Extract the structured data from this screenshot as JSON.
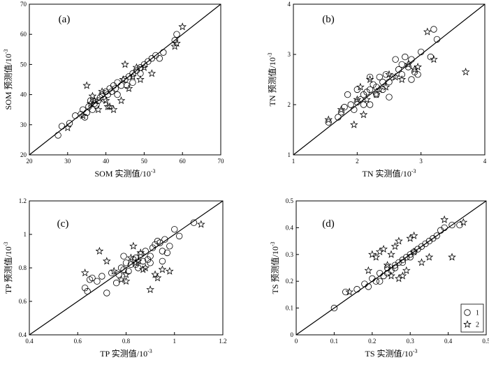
{
  "chart_data": [
    {
      "type": "scatter",
      "panel_label": "(a)",
      "xlabel": "SOM 实测值/10",
      "ylabel": "SOM 预测值/10",
      "unit_exponent": "-3",
      "xlim": [
        20,
        70
      ],
      "ylim": [
        20,
        70
      ],
      "xticks": [
        20,
        30,
        40,
        50,
        60,
        70
      ],
      "yticks": [
        20,
        30,
        40,
        50,
        60,
        70
      ],
      "line": [
        [
          20,
          20
        ],
        [
          70,
          70
        ]
      ],
      "series": [
        {
          "name": "1",
          "marker": "circle",
          "points": [
            [
              27.5,
              26.5
            ],
            [
              28.5,
              29.5
            ],
            [
              30.5,
              30.5
            ],
            [
              32,
              33
            ],
            [
              33.5,
              33.5
            ],
            [
              34,
              35
            ],
            [
              34.5,
              32.5
            ],
            [
              35,
              34
            ],
            [
              35.5,
              36
            ],
            [
              36,
              38
            ],
            [
              36.5,
              35
            ],
            [
              37,
              37
            ],
            [
              37.5,
              36.5
            ],
            [
              38,
              38
            ],
            [
              38.5,
              39
            ],
            [
              39,
              40
            ],
            [
              39.5,
              38.5
            ],
            [
              40,
              41
            ],
            [
              40.5,
              40
            ],
            [
              41,
              42
            ],
            [
              41.5,
              41
            ],
            [
              42,
              43
            ],
            [
              42.5,
              42
            ],
            [
              43,
              44
            ],
            [
              44,
              43
            ],
            [
              45,
              45
            ],
            [
              46,
              46
            ],
            [
              47,
              47
            ],
            [
              48,
              48
            ],
            [
              49,
              49
            ],
            [
              50,
              50
            ],
            [
              51,
              51
            ],
            [
              52,
              52
            ],
            [
              53,
              53
            ],
            [
              55,
              54
            ],
            [
              58,
              58
            ],
            [
              58.5,
              60
            ],
            [
              43,
              40
            ],
            [
              45.5,
              43
            ],
            [
              49,
              47
            ],
            [
              47,
              44
            ],
            [
              54,
              52
            ]
          ]
        },
        {
          "name": "2",
          "marker": "star",
          "points": [
            [
              30,
              29
            ],
            [
              35,
              43
            ],
            [
              36,
              37
            ],
            [
              37,
              38
            ],
            [
              38,
              35
            ],
            [
              39,
              41
            ],
            [
              40,
              38
            ],
            [
              40.5,
              36
            ],
            [
              41,
              36
            ],
            [
              42,
              35
            ],
            [
              44,
              38
            ],
            [
              44.5,
              45
            ],
            [
              45,
              50
            ],
            [
              47,
              46
            ],
            [
              48,
              49
            ],
            [
              49,
              45
            ],
            [
              50,
              49
            ],
            [
              52,
              47
            ],
            [
              58,
              56
            ],
            [
              58.5,
              57
            ],
            [
              60,
              62.5
            ],
            [
              34,
              33
            ],
            [
              36.5,
              39.5
            ],
            [
              46,
              42
            ]
          ]
        }
      ]
    },
    {
      "type": "scatter",
      "panel_label": "(b)",
      "xlabel": "TN 实测值/10",
      "ylabel": "TN 预测值/10",
      "unit_exponent": "-3",
      "xlim": [
        1,
        4
      ],
      "ylim": [
        1,
        4
      ],
      "xticks": [
        1,
        2,
        3,
        4
      ],
      "yticks": [
        1,
        2,
        3,
        4
      ],
      "line": [
        [
          1,
          1
        ],
        [
          4,
          4
        ]
      ],
      "series": [
        {
          "name": "1",
          "marker": "circle",
          "points": [
            [
              1.55,
              1.65
            ],
            [
              1.7,
              1.75
            ],
            [
              1.75,
              1.85
            ],
            [
              1.8,
              1.95
            ],
            [
              1.85,
              2.2
            ],
            [
              1.9,
              2.0
            ],
            [
              1.95,
              1.9
            ],
            [
              2.0,
              2.05
            ],
            [
              2.0,
              2.3
            ],
            [
              2.05,
              2.1
            ],
            [
              2.1,
              2.2
            ],
            [
              2.15,
              2.25
            ],
            [
              2.2,
              2.0
            ],
            [
              2.2,
              2.3
            ],
            [
              2.25,
              2.4
            ],
            [
              2.3,
              2.35
            ],
            [
              2.35,
              2.55
            ],
            [
              2.4,
              2.45
            ],
            [
              2.45,
              2.6
            ],
            [
              2.5,
              2.45
            ],
            [
              2.55,
              2.55
            ],
            [
              2.6,
              2.9
            ],
            [
              2.65,
              2.7
            ],
            [
              2.7,
              2.8
            ],
            [
              2.75,
              2.95
            ],
            [
              2.8,
              2.75
            ],
            [
              2.85,
              2.9
            ],
            [
              2.9,
              2.65
            ],
            [
              2.95,
              2.6
            ],
            [
              3.0,
              3.05
            ],
            [
              3.15,
              2.95
            ],
            [
              3.2,
              3.5
            ],
            [
              3.25,
              3.3
            ],
            [
              2.2,
              2.55
            ],
            [
              2.3,
              2.2
            ],
            [
              2.4,
              2.3
            ],
            [
              2.5,
              2.15
            ],
            [
              2.7,
              2.6
            ],
            [
              2.85,
              2.5
            ],
            [
              2.1,
              2.0
            ]
          ]
        },
        {
          "name": "2",
          "marker": "star",
          "points": [
            [
              1.55,
              1.7
            ],
            [
              1.75,
              1.9
            ],
            [
              1.95,
              1.6
            ],
            [
              2.0,
              2.1
            ],
            [
              2.05,
              2.35
            ],
            [
              2.1,
              1.8
            ],
            [
              2.2,
              2.5
            ],
            [
              2.3,
              2.2
            ],
            [
              2.35,
              2.3
            ],
            [
              2.5,
              2.6
            ],
            [
              2.6,
              2.55
            ],
            [
              2.7,
              2.5
            ],
            [
              2.8,
              2.8
            ],
            [
              2.9,
              2.7
            ],
            [
              3.1,
              3.45
            ],
            [
              3.2,
              2.9
            ],
            [
              3.7,
              2.65
            ],
            [
              2.15,
              2.1
            ],
            [
              2.45,
              2.35
            ],
            [
              2.95,
              2.75
            ]
          ]
        }
      ]
    },
    {
      "type": "scatter",
      "panel_label": "(c)",
      "xlabel": "TP 实测值/10",
      "ylabel": "TP 预测值/10",
      "unit_exponent": "-3",
      "xlim": [
        0.4,
        1.2
      ],
      "ylim": [
        0.4,
        1.2
      ],
      "xticks": [
        0.4,
        0.6,
        0.8,
        1.0,
        1.2
      ],
      "yticks": [
        0.4,
        0.6,
        0.8,
        1.0,
        1.2
      ],
      "line": [
        [
          0.4,
          0.4
        ],
        [
          1.2,
          1.2
        ]
      ],
      "series": [
        {
          "name": "1",
          "marker": "circle",
          "points": [
            [
              0.63,
              0.68
            ],
            [
              0.64,
              0.66
            ],
            [
              0.65,
              0.73
            ],
            [
              0.66,
              0.74
            ],
            [
              0.68,
              0.72
            ],
            [
              0.7,
              0.75
            ],
            [
              0.72,
              0.65
            ],
            [
              0.74,
              0.77
            ],
            [
              0.76,
              0.71
            ],
            [
              0.78,
              0.8
            ],
            [
              0.79,
              0.87
            ],
            [
              0.8,
              0.83
            ],
            [
              0.81,
              0.78
            ],
            [
              0.82,
              0.82
            ],
            [
              0.83,
              0.85
            ],
            [
              0.84,
              0.86
            ],
            [
              0.85,
              0.8
            ],
            [
              0.86,
              0.88
            ],
            [
              0.87,
              0.84
            ],
            [
              0.88,
              0.9
            ],
            [
              0.89,
              0.85
            ],
            [
              0.9,
              0.87
            ],
            [
              0.91,
              0.92
            ],
            [
              0.92,
              0.94
            ],
            [
              0.93,
              0.96
            ],
            [
              0.94,
              0.95
            ],
            [
              0.95,
              0.9
            ],
            [
              0.96,
              0.97
            ],
            [
              0.97,
              0.89
            ],
            [
              0.98,
              0.93
            ],
            [
              1.0,
              1.03
            ],
            [
              1.02,
              0.99
            ],
            [
              1.08,
              1.07
            ],
            [
              0.77,
              0.76
            ],
            [
              0.79,
              0.79
            ],
            [
              0.84,
              0.82
            ],
            [
              0.9,
              0.83
            ],
            [
              0.95,
              0.84
            ]
          ]
        },
        {
          "name": "2",
          "marker": "star",
          "points": [
            [
              0.63,
              0.77
            ],
            [
              0.69,
              0.9
            ],
            [
              0.72,
              0.84
            ],
            [
              0.75,
              0.78
            ],
            [
              0.78,
              0.73
            ],
            [
              0.8,
              0.72
            ],
            [
              0.82,
              0.86
            ],
            [
              0.83,
              0.93
            ],
            [
              0.85,
              0.84
            ],
            [
              0.86,
              0.89
            ],
            [
              0.88,
              0.8
            ],
            [
              0.9,
              0.67
            ],
            [
              0.92,
              0.76
            ],
            [
              0.93,
              0.74
            ],
            [
              0.95,
              0.79
            ],
            [
              0.98,
              0.78
            ],
            [
              1.11,
              1.06
            ],
            [
              0.8,
              0.76
            ],
            [
              0.87,
              0.79
            ],
            [
              0.84,
              0.83
            ]
          ]
        }
      ]
    },
    {
      "type": "scatter",
      "panel_label": "(d)",
      "xlabel": "TS 实测值/10",
      "ylabel": "TS 预测值/10",
      "unit_exponent": "-3",
      "xlim": [
        0,
        0.5
      ],
      "ylim": [
        0,
        0.5
      ],
      "xticks": [
        0,
        0.1,
        0.2,
        0.3,
        0.4,
        0.5
      ],
      "yticks": [
        0,
        0.1,
        0.2,
        0.3,
        0.4,
        0.5
      ],
      "line": [
        [
          0,
          0
        ],
        [
          0.5,
          0.5
        ]
      ],
      "legend": {
        "placement": "bottom-right",
        "entries": [
          "1",
          "2"
        ]
      },
      "series": [
        {
          "name": "1",
          "marker": "circle",
          "points": [
            [
              0.1,
              0.1
            ],
            [
              0.13,
              0.16
            ],
            [
              0.16,
              0.17
            ],
            [
              0.18,
              0.19
            ],
            [
              0.19,
              0.18
            ],
            [
              0.2,
              0.21
            ],
            [
              0.21,
              0.2
            ],
            [
              0.22,
              0.23
            ],
            [
              0.23,
              0.22
            ],
            [
              0.24,
              0.25
            ],
            [
              0.25,
              0.24
            ],
            [
              0.26,
              0.26
            ],
            [
              0.27,
              0.27
            ],
            [
              0.28,
              0.28
            ],
            [
              0.29,
              0.29
            ],
            [
              0.3,
              0.3
            ],
            [
              0.31,
              0.31
            ],
            [
              0.32,
              0.32
            ],
            [
              0.33,
              0.33
            ],
            [
              0.34,
              0.34
            ],
            [
              0.35,
              0.35
            ],
            [
              0.36,
              0.36
            ],
            [
              0.37,
              0.37
            ],
            [
              0.38,
              0.39
            ],
            [
              0.39,
              0.4
            ],
            [
              0.41,
              0.41
            ],
            [
              0.43,
              0.41
            ],
            [
              0.22,
              0.2
            ],
            [
              0.24,
              0.23
            ],
            [
              0.26,
              0.25
            ],
            [
              0.28,
              0.27
            ],
            [
              0.3,
              0.29
            ]
          ]
        },
        {
          "name": "2",
          "marker": "star",
          "points": [
            [
              0.14,
              0.16
            ],
            [
              0.19,
              0.24
            ],
            [
              0.2,
              0.3
            ],
            [
              0.21,
              0.29
            ],
            [
              0.22,
              0.31
            ],
            [
              0.23,
              0.32
            ],
            [
              0.24,
              0.26
            ],
            [
              0.25,
              0.3
            ],
            [
              0.26,
              0.33
            ],
            [
              0.27,
              0.35
            ],
            [
              0.28,
              0.22
            ],
            [
              0.29,
              0.24
            ],
            [
              0.3,
              0.36
            ],
            [
              0.31,
              0.37
            ],
            [
              0.33,
              0.27
            ],
            [
              0.35,
              0.29
            ],
            [
              0.39,
              0.43
            ],
            [
              0.41,
              0.29
            ],
            [
              0.44,
              0.42
            ],
            [
              0.27,
              0.21
            ],
            [
              0.31,
              0.31
            ],
            [
              0.25,
              0.22
            ]
          ]
        }
      ]
    }
  ]
}
